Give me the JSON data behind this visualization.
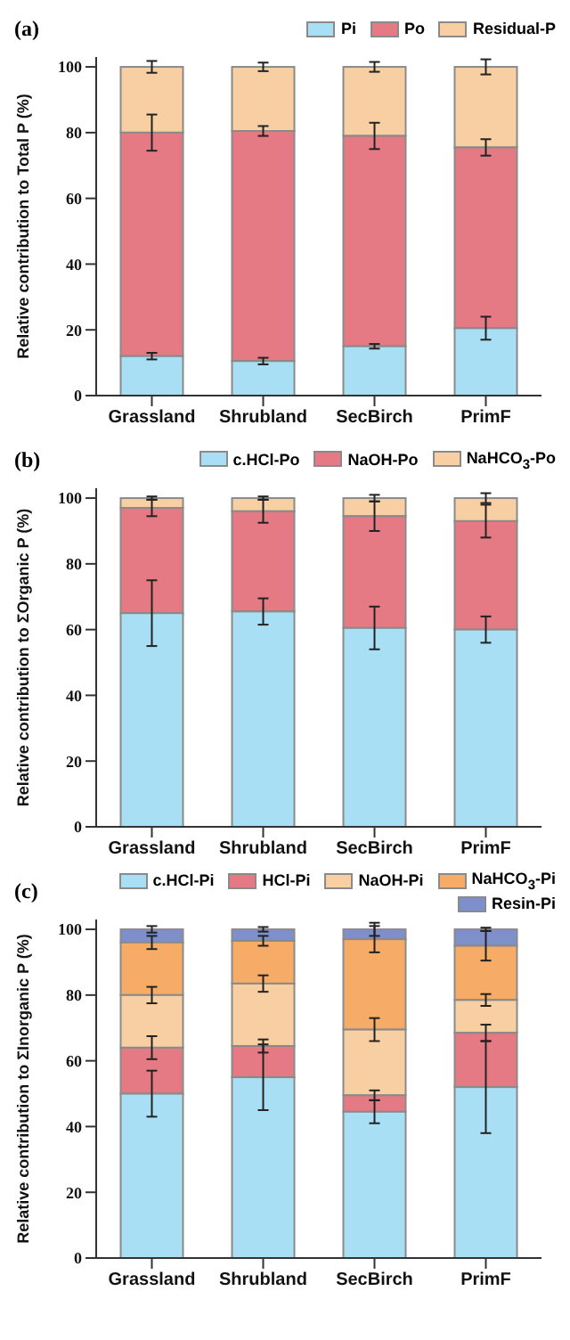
{
  "chart_data": [
    {
      "type": "bar",
      "title": "(a)",
      "ylabel": "Relative contribution to Total P (%)",
      "categories": [
        "Grassland",
        "Shrubland",
        "SecBirch",
        "PrimF"
      ],
      "stacked": true,
      "legend": "top",
      "ylim": [
        0,
        103
      ],
      "yticks": [
        0,
        20,
        40,
        60,
        80,
        100
      ],
      "series": [
        {
          "name": "Pi",
          "color": "#a8dff5",
          "values": [
            12,
            10.5,
            15,
            20.5
          ],
          "errors": [
            1,
            1,
            0.7,
            3.5
          ]
        },
        {
          "name": "Po",
          "color": "#e57a84",
          "values": [
            68,
            70,
            64,
            55
          ],
          "errors": [
            5.5,
            1.5,
            4,
            2.5
          ]
        },
        {
          "name": "Residual-P",
          "color": "#f8cfa3",
          "values": [
            20,
            19.5,
            21,
            24.5
          ],
          "errors": [
            1.8,
            1.3,
            1.5,
            2.3
          ]
        }
      ]
    },
    {
      "type": "bar",
      "title": "(b)",
      "ylabel": "Relative contribution to ΣOrganic  P (%)",
      "categories": [
        "Grassland",
        "Shrubland",
        "SecBirch",
        "PrimF"
      ],
      "stacked": true,
      "legend": "top",
      "ylim": [
        0,
        103
      ],
      "yticks": [
        0,
        20,
        40,
        60,
        80,
        100
      ],
      "series": [
        {
          "name": "c.HCl-Po",
          "color": "#a8dff5",
          "values": [
            65,
            65.5,
            60.5,
            60
          ],
          "errors": [
            10,
            4,
            6.5,
            4
          ]
        },
        {
          "name": "NaOH-Po",
          "color": "#e57a84",
          "values": [
            32,
            30.5,
            34,
            33
          ],
          "errors": [
            2.5,
            3.5,
            4.5,
            5
          ]
        },
        {
          "name": "NaHCO$_{3}$-Po",
          "color": "#f8cfa3",
          "values": [
            3,
            4,
            5.5,
            7
          ],
          "errors": [
            0.5,
            0.5,
            1,
            1.5
          ]
        }
      ]
    },
    {
      "type": "bar",
      "title": "(c)",
      "ylabel": "Relative contribution to ΣInorganic  P (%)",
      "categories": [
        "Grassland",
        "Shrubland",
        "SecBirch",
        "PrimF"
      ],
      "stacked": true,
      "legend": "top",
      "ylim": [
        0,
        103
      ],
      "yticks": [
        0,
        20,
        40,
        60,
        80,
        100
      ],
      "series": [
        {
          "name": "c.HCl-Pi",
          "color": "#a8dff5",
          "values": [
            50,
            55,
            44.5,
            52
          ],
          "errors": [
            7,
            10,
            3.5,
            14
          ]
        },
        {
          "name": "HCl-Pi",
          "color": "#e57a84",
          "values": [
            14,
            9.5,
            5,
            16.5
          ],
          "errors": [
            3.5,
            2,
            1.5,
            2.5
          ]
        },
        {
          "name": "NaOH-Pi",
          "color": "#f8cfa3",
          "values": [
            16,
            19,
            20,
            10
          ],
          "errors": [
            2.5,
            2.5,
            3.5,
            1.8
          ]
        },
        {
          "name": "NaHCO$_{3}$-Pi",
          "color": "#f6ac66",
          "values": [
            16,
            13,
            27.5,
            16.5
          ],
          "errors": [
            2,
            1.5,
            4,
            4.5
          ]
        },
        {
          "name": "Resin-Pi",
          "color": "#7f8fcc",
          "values": [
            4,
            3.5,
            3,
            5
          ],
          "errors": [
            1,
            0.7,
            2,
            0.5
          ]
        }
      ]
    }
  ]
}
